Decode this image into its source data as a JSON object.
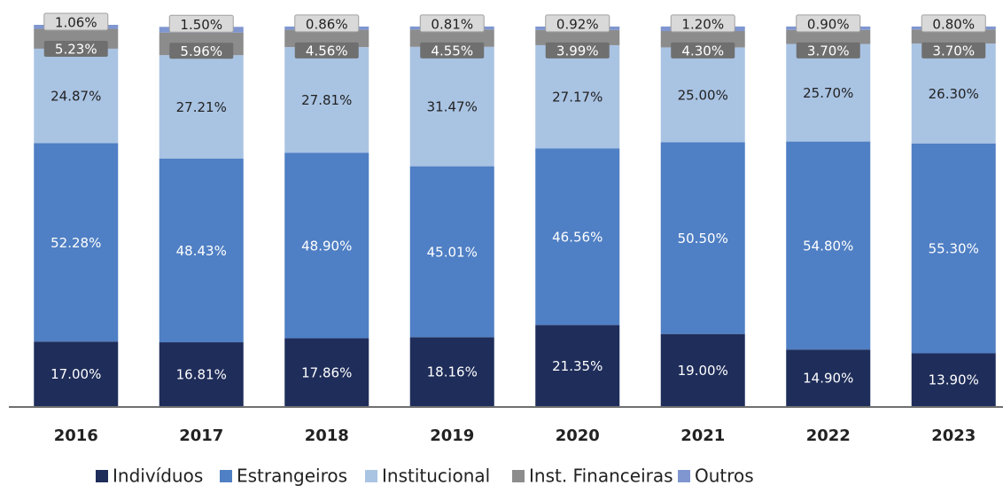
{
  "chart_data": {
    "type": "stacked_bar",
    "categories": [
      "2016",
      "2017",
      "2018",
      "2019",
      "2020",
      "2021",
      "2022",
      "2023"
    ],
    "series": [
      {
        "name": "Indivíduos",
        "color": "#1f2d5a",
        "values": [
          17.0,
          16.81,
          17.86,
          18.16,
          21.35,
          19.0,
          14.9,
          13.9
        ],
        "value_labels": [
          "17.00%",
          "16.81%",
          "17.86%",
          "18.16%",
          "21.35%",
          "19.00%",
          "14.90%",
          "13.90%"
        ]
      },
      {
        "name": "Estrangeiros",
        "color": "#4f7fc4",
        "values": [
          52.28,
          48.43,
          48.9,
          45.01,
          46.56,
          50.5,
          54.8,
          55.3
        ],
        "value_labels": [
          "52.28%",
          "48.43%",
          "48.90%",
          "45.01%",
          "46.56%",
          "50.50%",
          "54.80%",
          "55.30%"
        ]
      },
      {
        "name": "Institucional",
        "color": "#a9c3e3",
        "values": [
          24.87,
          27.21,
          27.81,
          31.47,
          27.17,
          25.0,
          25.7,
          26.3
        ],
        "value_labels": [
          "24.87%",
          "27.21%",
          "27.81%",
          "31.47%",
          "27.17%",
          "25.00%",
          "25.70%",
          "26.30%"
        ]
      },
      {
        "name": "Inst. Financeiras",
        "color": "#8c8c8c",
        "values": [
          5.23,
          5.96,
          4.56,
          4.55,
          3.99,
          4.3,
          3.7,
          3.7
        ],
        "value_labels": [
          "5.23%",
          "5.96%",
          "4.56%",
          "4.55%",
          "3.99%",
          "4.30%",
          "3.70%",
          "3.70%"
        ]
      },
      {
        "name": "Outros",
        "color": "#7f96d0",
        "values": [
          1.06,
          1.5,
          0.86,
          0.81,
          0.92,
          1.2,
          0.9,
          0.8
        ],
        "value_labels": [
          "1.06%",
          "1.50%",
          "0.86%",
          "0.81%",
          "0.92%",
          "1.20%",
          "0.90%",
          "0.80%"
        ]
      }
    ]
  }
}
